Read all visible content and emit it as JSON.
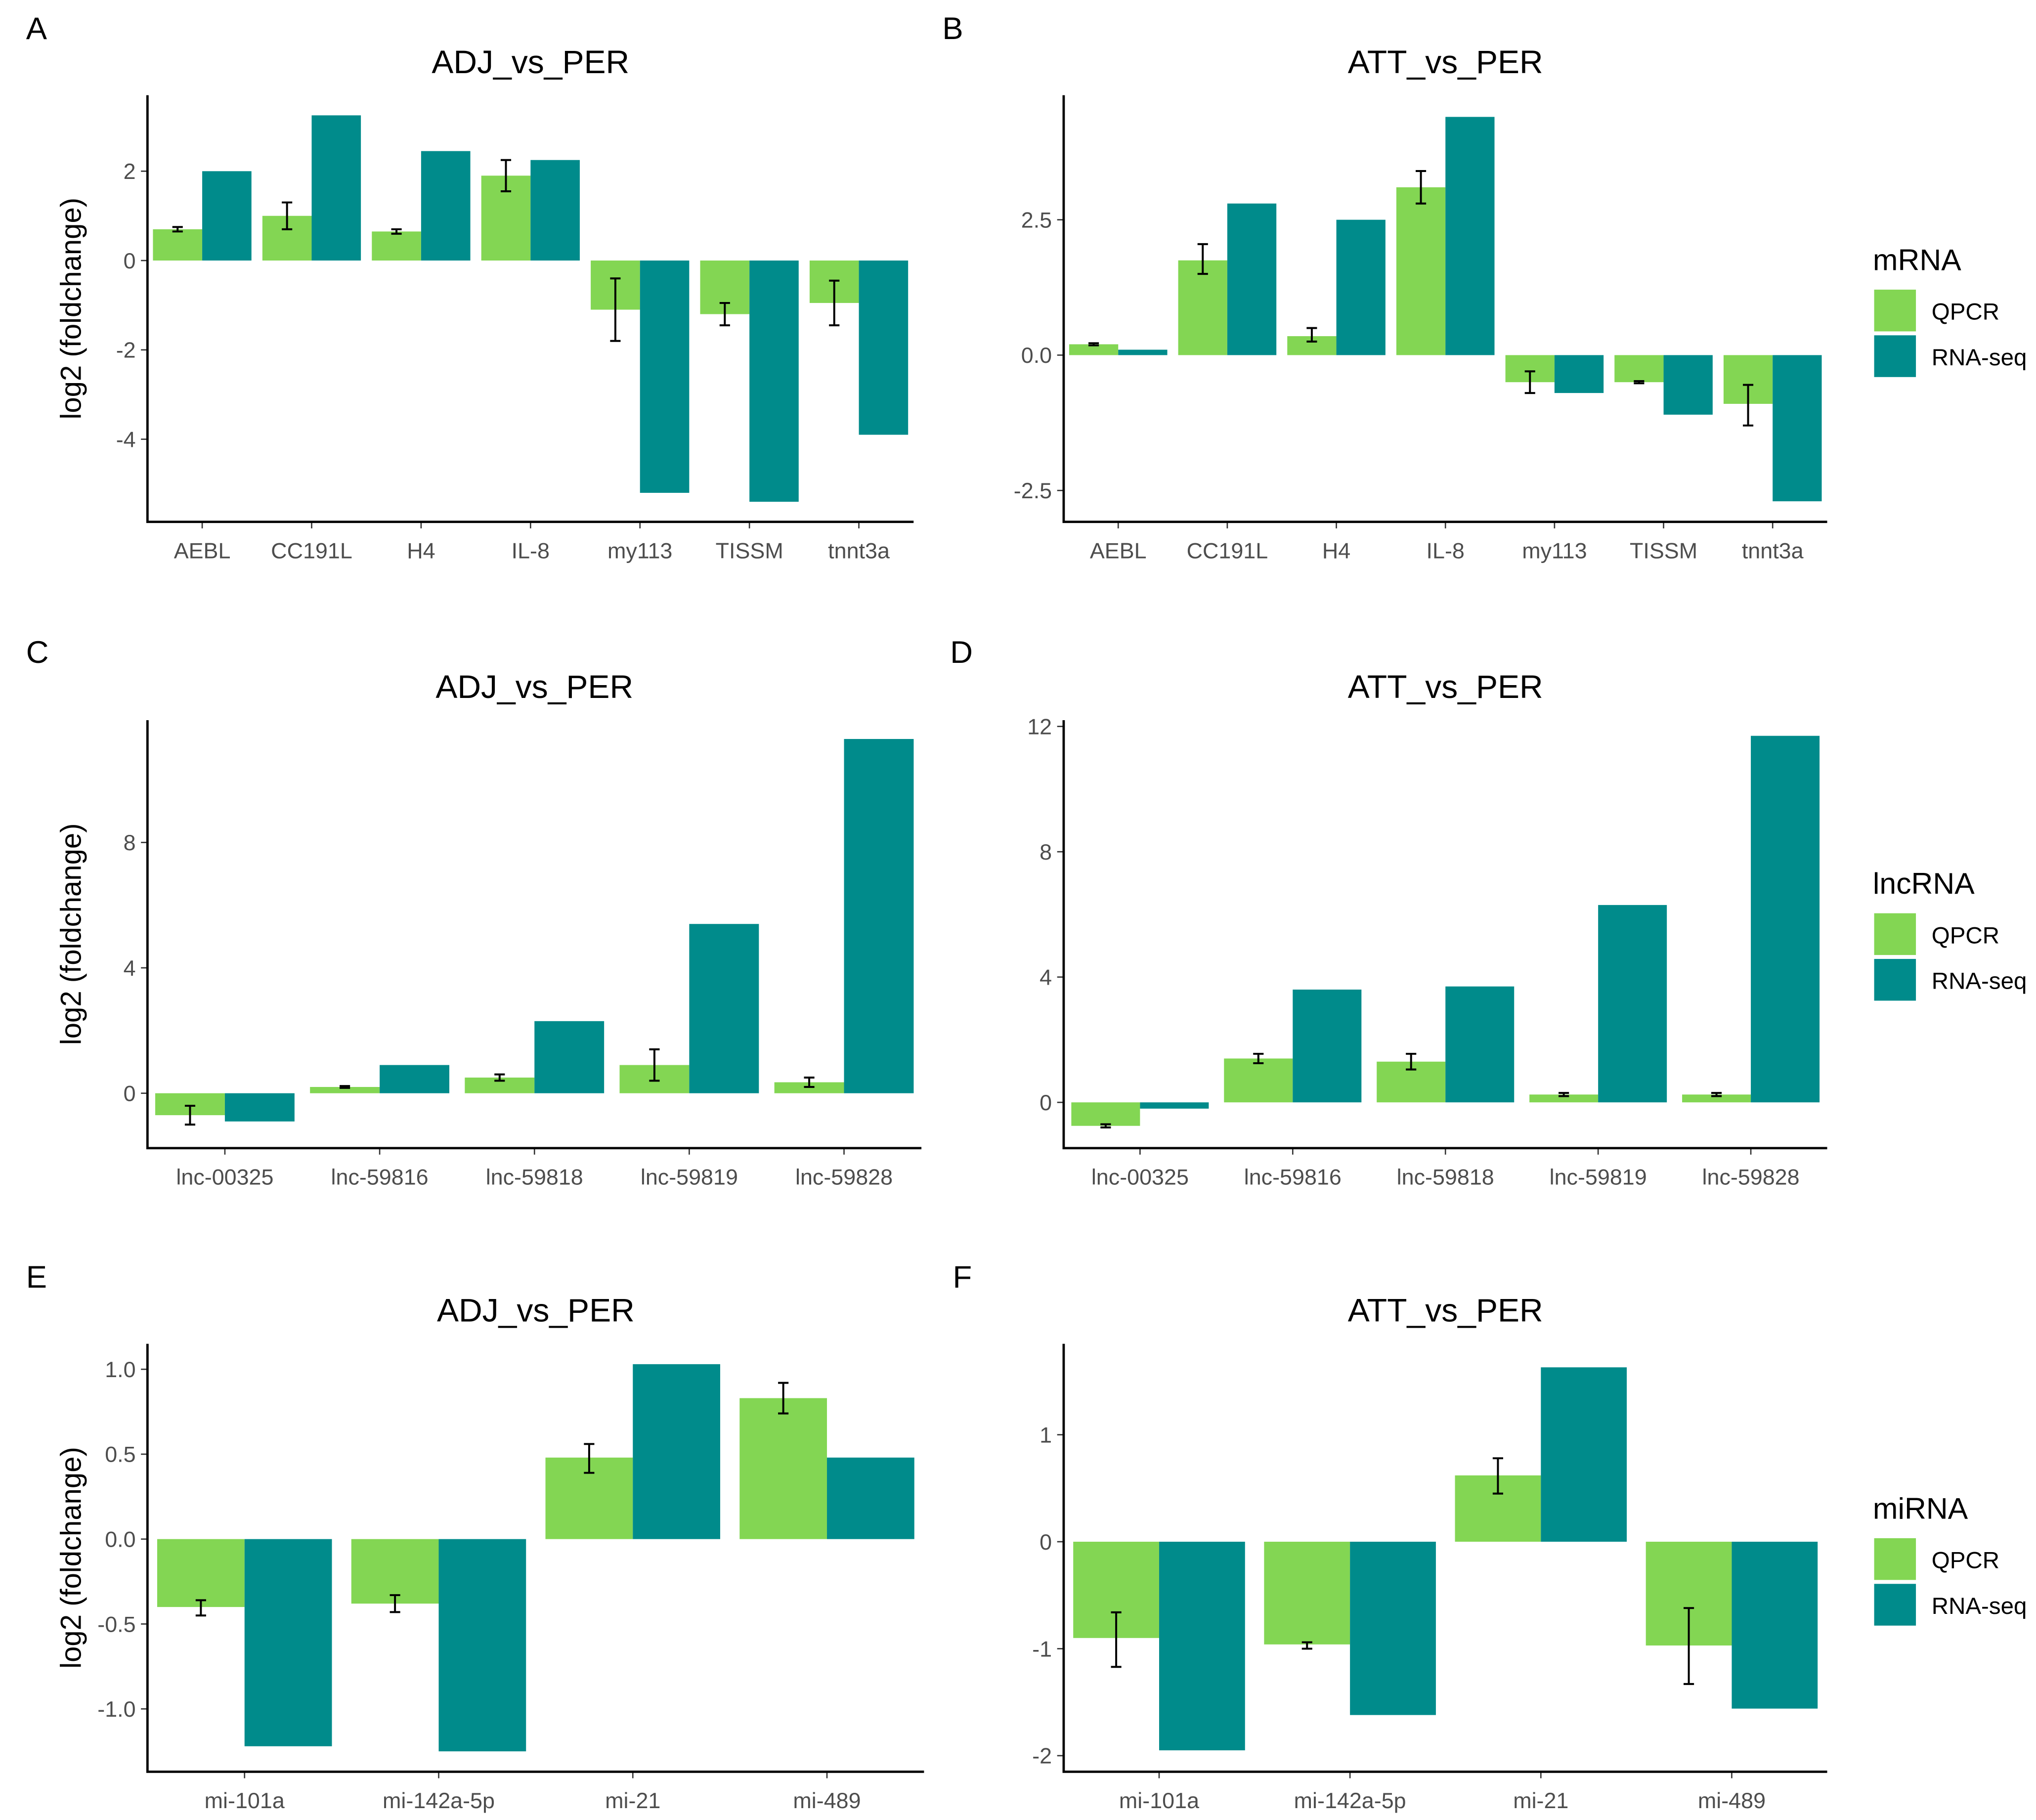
{
  "colors": {
    "QPCR": "#83d653",
    "RNA-seq": "#008b8b"
  },
  "chart_data": [
    {
      "panel": "A",
      "type": "bar",
      "title": "ADJ_vs_PER",
      "ylabel": "log2 (foldchange)",
      "ylim": [
        -5.85,
        3.7
      ],
      "yticks": [
        -4,
        -2,
        0,
        2
      ],
      "categories": [
        "AEBL",
        "CC191L",
        "H4",
        "IL-8",
        "my113",
        "TISSM",
        "tnnt3a"
      ],
      "series": [
        {
          "name": "QPCR",
          "values": [
            0.7,
            1.0,
            0.65,
            1.9,
            -1.1,
            -1.2,
            -0.95
          ],
          "err_low": [
            0.65,
            0.7,
            0.6,
            1.55,
            -1.8,
            -1.45,
            -1.45
          ],
          "err_high": [
            0.75,
            1.3,
            0.7,
            2.25,
            -0.4,
            -0.95,
            -0.45
          ]
        },
        {
          "name": "RNA-seq",
          "values": [
            2.0,
            3.25,
            2.45,
            2.25,
            -5.2,
            -5.4,
            -3.9
          ]
        }
      ]
    },
    {
      "panel": "B",
      "type": "bar",
      "title": "ATT_vs_PER",
      "ylabel": "",
      "ylim": [
        -3.08,
        4.8
      ],
      "yticks": [
        -2.5,
        0.0,
        2.5
      ],
      "categories": [
        "AEBL",
        "CC191L",
        "H4",
        "IL-8",
        "my113",
        "TISSM",
        "tnnt3a"
      ],
      "legend": {
        "title": "mRNA",
        "entries": [
          "QPCR",
          "RNA-seq"
        ],
        "position": "right"
      },
      "series": [
        {
          "name": "QPCR",
          "values": [
            0.2,
            1.75,
            0.35,
            3.1,
            -0.5,
            -0.5,
            -0.9
          ],
          "err_low": [
            0.18,
            1.5,
            0.25,
            2.8,
            -0.7,
            -0.52,
            -1.3
          ],
          "err_high": [
            0.22,
            2.05,
            0.5,
            3.4,
            -0.3,
            -0.48,
            -0.55
          ]
        },
        {
          "name": "RNA-seq",
          "values": [
            0.1,
            2.8,
            2.5,
            4.4,
            -0.7,
            -1.1,
            -2.7
          ]
        }
      ]
    },
    {
      "panel": "C",
      "type": "bar",
      "title": "ADJ_vs_PER",
      "ylabel": "log2 (foldchange)",
      "ylim": [
        -1.75,
        11.9
      ],
      "yticks": [
        0,
        4,
        8
      ],
      "categories": [
        "lnc-00325",
        "lnc-59816",
        "lnc-59818",
        "lnc-59819",
        "lnc-59828"
      ],
      "series": [
        {
          "name": "QPCR",
          "values": [
            -0.7,
            0.2,
            0.5,
            0.9,
            0.35
          ],
          "err_low": [
            -1.0,
            0.17,
            0.4,
            0.4,
            0.2
          ],
          "err_high": [
            -0.4,
            0.23,
            0.6,
            1.4,
            0.5
          ]
        },
        {
          "name": "RNA-seq",
          "values": [
            -0.9,
            0.9,
            2.3,
            5.4,
            11.3
          ]
        }
      ]
    },
    {
      "panel": "D",
      "type": "bar",
      "title": "ATT_vs_PER",
      "ylabel": "",
      "ylim": [
        -1.46,
        12.2
      ],
      "yticks": [
        0,
        4,
        8,
        12
      ],
      "categories": [
        "lnc-00325",
        "lnc-59816",
        "lnc-59818",
        "lnc-59819",
        "lnc-59828"
      ],
      "legend": {
        "title": "lncRNA",
        "entries": [
          "QPCR",
          "RNA-seq"
        ],
        "position": "right"
      },
      "series": [
        {
          "name": "QPCR",
          "values": [
            -0.75,
            1.4,
            1.3,
            0.25,
            0.25
          ],
          "err_low": [
            -0.8,
            1.25,
            1.05,
            0.2,
            0.2
          ],
          "err_high": [
            -0.7,
            1.55,
            1.55,
            0.3,
            0.3
          ]
        },
        {
          "name": "RNA-seq",
          "values": [
            -0.2,
            3.6,
            3.7,
            6.3,
            11.7
          ]
        }
      ]
    },
    {
      "panel": "E",
      "type": "bar",
      "title": "ADJ_vs_PER",
      "ylabel": "log2 (foldchange)",
      "ylim": [
        -1.37,
        1.15
      ],
      "yticks": [
        -1.0,
        -0.5,
        0.0,
        0.5,
        1.0
      ],
      "categories": [
        "mi-101a",
        "mi-142a-5p",
        "mi-21",
        "mi-489"
      ],
      "series": [
        {
          "name": "QPCR",
          "values": [
            -0.4,
            -0.38,
            0.48,
            0.83
          ],
          "err_low": [
            -0.45,
            -0.43,
            0.39,
            0.74
          ],
          "err_high": [
            -0.36,
            -0.33,
            0.56,
            0.92
          ]
        },
        {
          "name": "RNA-seq",
          "values": [
            -1.22,
            -1.25,
            1.03,
            0.48
          ]
        }
      ]
    },
    {
      "panel": "F",
      "type": "bar",
      "title": "ATT_vs_PER",
      "ylabel": "",
      "ylim": [
        -2.15,
        1.85
      ],
      "yticks": [
        -2,
        -1,
        0,
        1
      ],
      "categories": [
        "mi-101a",
        "mi-142a-5p",
        "mi-21",
        "mi-489"
      ],
      "legend": {
        "title": "miRNA",
        "entries": [
          "QPCR",
          "RNA-seq"
        ],
        "position": "right"
      },
      "series": [
        {
          "name": "QPCR",
          "values": [
            -0.9,
            -0.96,
            0.62,
            -0.97
          ],
          "err_low": [
            -1.17,
            -1.0,
            0.45,
            -1.33
          ],
          "err_high": [
            -0.66,
            -0.94,
            0.78,
            -0.62
          ]
        },
        {
          "name": "RNA-seq",
          "values": [
            -1.95,
            -1.62,
            1.63,
            -1.56
          ]
        }
      ]
    }
  ]
}
